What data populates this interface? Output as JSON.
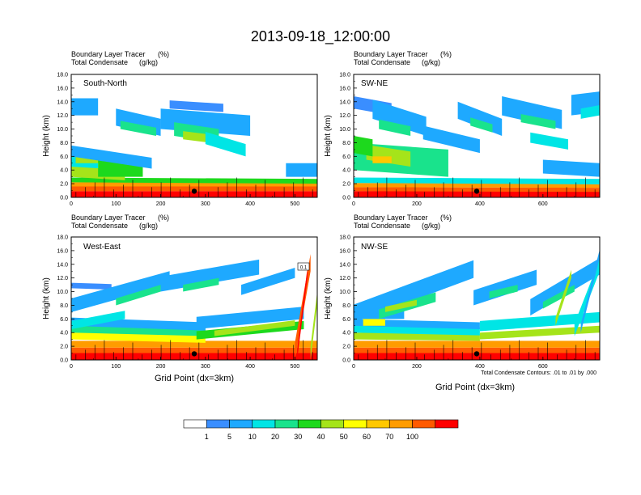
{
  "title": "2013-09-18_12:00:00",
  "chart_data": [
    {
      "type": "heatmap",
      "panel_label": "South-North",
      "left_title_line1": "Boundary Layer Tracer",
      "left_title_line2": "Total Condensate",
      "right_title_line1": "(%)",
      "right_title_line2": "(g/kg)",
      "ylabel": "Height (km)",
      "xlabel": "",
      "xlim": [
        0,
        550
      ],
      "ylim": [
        0,
        18
      ],
      "xticks": [
        "0",
        "100",
        "200",
        "300",
        "400",
        "500"
      ],
      "yticks": [
        "0.0",
        "2.0",
        "4.0",
        "6.0",
        "8.0",
        "10.0",
        "12.0",
        "14.0",
        "16.0",
        "18.0"
      ],
      "marker_x": 275,
      "marker_y": 0.9
    },
    {
      "type": "heatmap",
      "panel_label": "SW-NE",
      "left_title_line1": "Boundary Layer Tracer",
      "left_title_line2": "Total Condensate",
      "right_title_line1": "(%)",
      "right_title_line2": "(g/kg)",
      "ylabel": "Height (km)",
      "xlabel": "",
      "xlim": [
        0,
        780
      ],
      "ylim": [
        0,
        18
      ],
      "xticks": [
        "0",
        "200",
        "400",
        "600"
      ],
      "yticks": [
        "0.0",
        "2.0",
        "4.0",
        "6.0",
        "8.0",
        "10.0",
        "12.0",
        "14.0",
        "16.0",
        "18.0"
      ],
      "marker_x": 390,
      "marker_y": 0.9
    },
    {
      "type": "heatmap",
      "panel_label": "West-East",
      "left_title_line1": "Boundary Layer Tracer",
      "left_title_line2": "Total Condensate",
      "right_title_line1": "(%)",
      "right_title_line2": "(g/kg)",
      "ylabel": "Height (km)",
      "xlabel": "Grid Point (dx=3km)",
      "xlim": [
        0,
        550
      ],
      "ylim": [
        0,
        18
      ],
      "xticks": [
        "0",
        "100",
        "200",
        "300",
        "400",
        "500"
      ],
      "yticks": [
        "0.0",
        "2.0",
        "4.0",
        "6.0",
        "8.0",
        "10.0",
        "12.0",
        "14.0",
        "16.0",
        "18.0"
      ],
      "marker_x": 275,
      "marker_y": 0.9,
      "contour_label": "0.1"
    },
    {
      "type": "heatmap",
      "panel_label": "NW-SE",
      "left_title_line1": "Boundary Layer Tracer",
      "left_title_line2": "Total Condensate",
      "right_title_line1": "(%)",
      "right_title_line2": "(g/kg)",
      "ylabel": "Height (km)",
      "xlabel": "Grid Point (dx=3km)",
      "xlim": [
        0,
        780
      ],
      "ylim": [
        0,
        18
      ],
      "xticks": [
        "0",
        "200",
        "400",
        "600"
      ],
      "yticks": [
        "0.0",
        "2.0",
        "4.0",
        "6.0",
        "8.0",
        "10.0",
        "12.0",
        "14.0",
        "16.0",
        "18.0"
      ],
      "marker_x": 390,
      "marker_y": 0.9,
      "footnote": "Total Condensate Contours: .01 to .01 by .000"
    }
  ],
  "colorbar": {
    "labels": [
      "1",
      "5",
      "10",
      "20",
      "30",
      "40",
      "50",
      "60",
      "70",
      "100"
    ],
    "colors": [
      "#ffffff",
      "#3a8eff",
      "#1ea9ff",
      "#00e5e5",
      "#19e38c",
      "#1dd91d",
      "#a5e41a",
      "#ffff00",
      "#ffc800",
      "#ff9c00",
      "#ff5a00",
      "#ff0000"
    ]
  }
}
